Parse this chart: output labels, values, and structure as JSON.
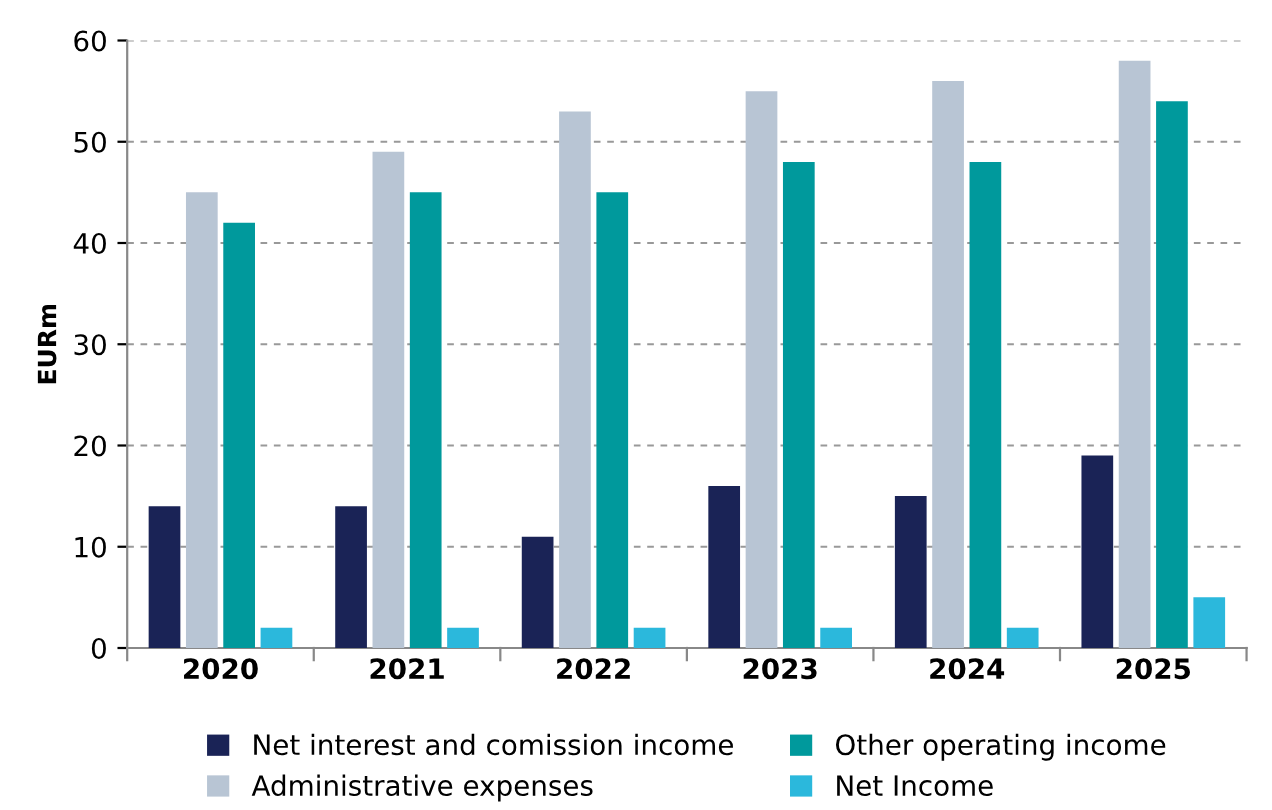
{
  "chart_data": {
    "type": "bar",
    "ylabel": "EURm",
    "categories": [
      "2020",
      "2021",
      "2022",
      "2023",
      "2024",
      "2025"
    ],
    "ylim": [
      0,
      60
    ],
    "yticks": [
      0,
      10,
      20,
      30,
      40,
      50,
      60
    ],
    "grid": "y",
    "legend": "bottom",
    "series": [
      {
        "name": "Net interest and comission income",
        "color": "#1a2356",
        "values": [
          14,
          14,
          11,
          16,
          15,
          19
        ]
      },
      {
        "name": "Administrative expenses",
        "color": "#b8c5d4",
        "values": [
          45,
          49,
          53,
          55,
          56,
          58
        ]
      },
      {
        "name": "Other operating income",
        "color": "#00999c",
        "values": [
          42,
          45,
          45,
          48,
          48,
          54
        ]
      },
      {
        "name": "Net Income",
        "color": "#2bb8dc",
        "values": [
          2,
          2,
          2,
          2,
          2,
          5
        ]
      }
    ]
  }
}
